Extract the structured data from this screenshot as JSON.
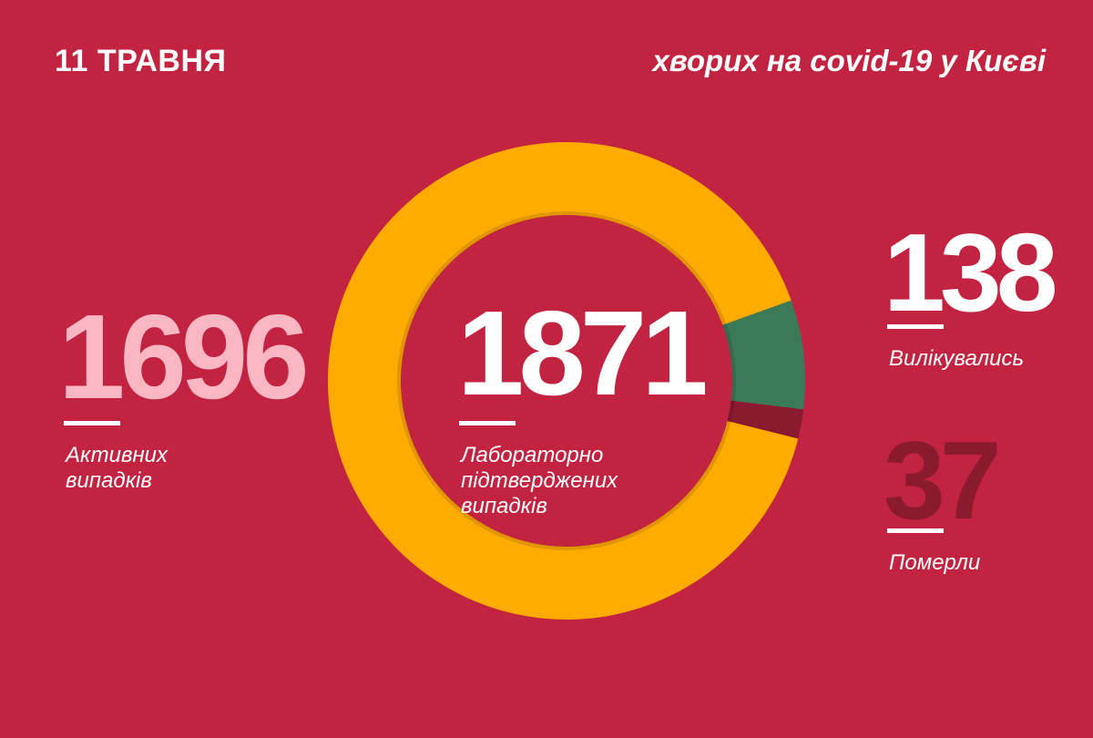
{
  "header": {
    "date": "11 ТРАВНЯ",
    "subtitle": "хворих на covid-19 у Києві"
  },
  "colors": {
    "background": "#c12340",
    "active": "#ffab00",
    "recovered": "#3b7a57",
    "deaths": "#8a1a2d",
    "active_number": "#f8b7c2",
    "deaths_number": "#8a1a2d"
  },
  "stats": {
    "active": {
      "number": "1696",
      "label_line1": "Активних",
      "label_line2": "випадків"
    },
    "total": {
      "number": "1871",
      "label_line1": "Лабораторно",
      "label_line2": "підтверджених",
      "label_line3": "випадків"
    },
    "recovered": {
      "number": "138",
      "label": "Вилікувались"
    },
    "deaths": {
      "number": "37",
      "label": "Померли"
    }
  },
  "chart_data": {
    "type": "pie",
    "title": "",
    "categories": [
      "Активних випадків",
      "Вилікувались",
      "Померли"
    ],
    "values": [
      1696,
      138,
      37
    ],
    "total": 1871,
    "colors": [
      "#ffab00",
      "#3b7a57",
      "#8a1a2d"
    ]
  }
}
